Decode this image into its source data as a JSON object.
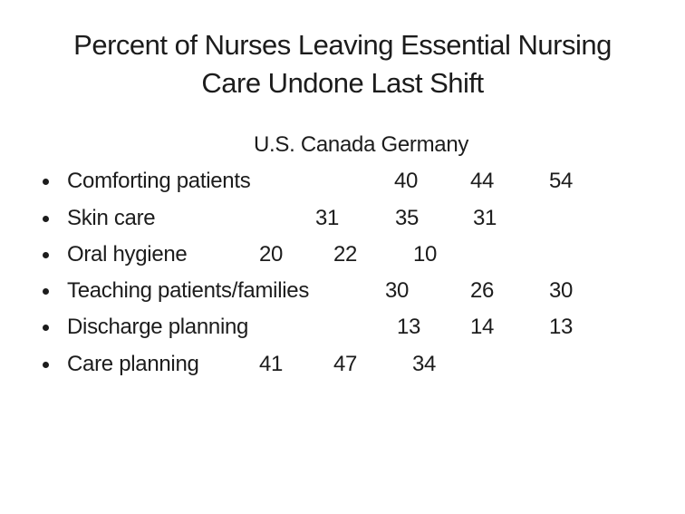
{
  "title": {
    "line1": "Percent of Nurses Leaving Essential Nursing",
    "line2": "Care Undone Last Shift"
  },
  "table": {
    "header_line": "U.S. Canada Germany",
    "columns": [
      "U.S.",
      "Canada",
      "Germany"
    ],
    "rows": [
      {
        "label": "Comforting patients",
        "values": [
          40,
          44,
          54
        ]
      },
      {
        "label": "Skin care",
        "values": [
          31,
          35,
          31
        ]
      },
      {
        "label": "Oral hygiene",
        "values": [
          20,
          22,
          10
        ]
      },
      {
        "label": "Teaching patients/families",
        "values": [
          30,
          26,
          30
        ]
      },
      {
        "label": "Discharge planning",
        "values": [
          13,
          14,
          13
        ]
      },
      {
        "label": "Care planning",
        "values": [
          41,
          47,
          34
        ]
      }
    ]
  },
  "colors": {
    "background": "#ffffff",
    "text": "#1c1c1c"
  }
}
